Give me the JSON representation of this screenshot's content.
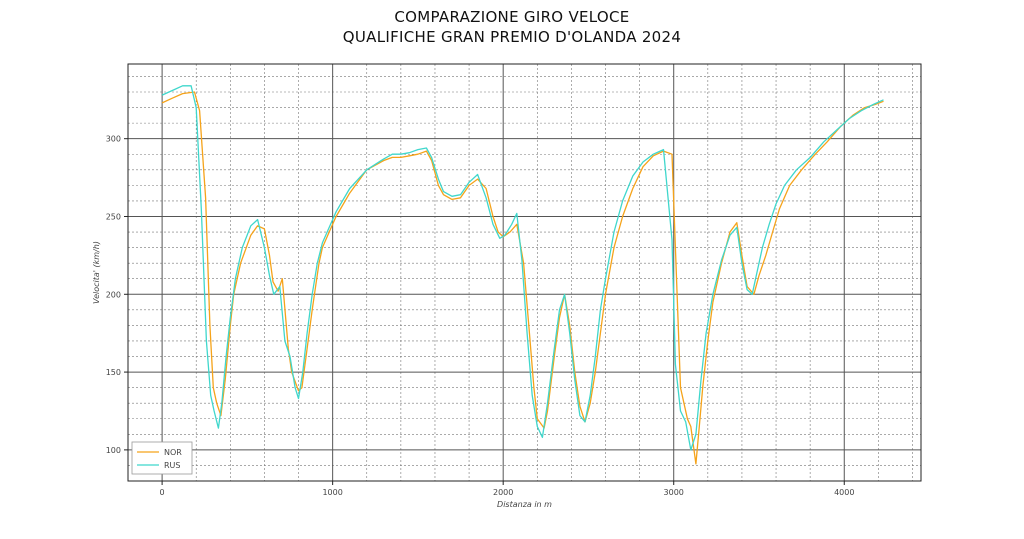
{
  "chart_data": {
    "type": "line",
    "title_line1": "COMPARAZIONE GIRO VELOCE",
    "title_line2": "QUALIFICHE GRAN PREMIO D'OLANDA 2024",
    "xlabel": "Distanza in m",
    "ylabel": "Velocita' (km/h)",
    "xlim": [
      -200,
      4450
    ],
    "ylim": [
      80,
      348
    ],
    "xticks": [
      0,
      1000,
      2000,
      3000,
      4000
    ],
    "yticks": [
      100,
      150,
      200,
      250,
      300
    ],
    "grid": true,
    "legend_position": "bottom-left",
    "series": [
      {
        "name": "NOR",
        "color": "#f5a31a",
        "x": [
          0,
          60,
          120,
          190,
          220,
          255,
          280,
          300,
          320,
          345,
          370,
          400,
          420,
          460,
          520,
          560,
          600,
          630,
          650,
          680,
          705,
          740,
          760,
          800,
          820,
          850,
          880,
          920,
          940,
          980,
          1020,
          1100,
          1200,
          1300,
          1350,
          1400,
          1450,
          1500,
          1550,
          1580,
          1620,
          1650,
          1700,
          1750,
          1800,
          1850,
          1900,
          1940,
          1970,
          2000,
          2040,
          2080,
          2120,
          2150,
          2180,
          2200,
          2240,
          2260,
          2300,
          2330,
          2360,
          2390,
          2420,
          2450,
          2480,
          2510,
          2540,
          2570,
          2600,
          2650,
          2700,
          2760,
          2820,
          2880,
          2940,
          2990,
          3010,
          3040,
          3080,
          3100,
          3130,
          3150,
          3170,
          3200,
          3230,
          3280,
          3330,
          3370,
          3400,
          3430,
          3470,
          3500,
          3540,
          3580,
          3620,
          3680,
          3750,
          3830,
          3900,
          3980,
          4050,
          4120,
          4180,
          4230
        ],
        "y": [
          323,
          326,
          329,
          330,
          318,
          262,
          180,
          140,
          130,
          122,
          145,
          180,
          200,
          220,
          238,
          244,
          242,
          225,
          208,
          202,
          210,
          165,
          150,
          138,
          140,
          165,
          190,
          220,
          230,
          240,
          250,
          265,
          280,
          286,
          288,
          288,
          289,
          290,
          292,
          286,
          270,
          264,
          261,
          262,
          270,
          274,
          268,
          250,
          240,
          237,
          240,
          245,
          220,
          180,
          140,
          120,
          114,
          125,
          160,
          185,
          200,
          180,
          150,
          128,
          118,
          130,
          150,
          175,
          200,
          230,
          250,
          268,
          282,
          289,
          292,
          290,
          230,
          140,
          120,
          115,
          91,
          115,
          140,
          170,
          195,
          220,
          240,
          246,
          225,
          205,
          200,
          212,
          225,
          240,
          255,
          270,
          280,
          290,
          298,
          308,
          315,
          320,
          322,
          324
        ]
      },
      {
        "name": "RUS",
        "color": "#3fd7cc",
        "x": [
          0,
          60,
          120,
          170,
          200,
          230,
          260,
          285,
          305,
          330,
          350,
          375,
          400,
          430,
          470,
          520,
          560,
          600,
          630,
          655,
          690,
          720,
          750,
          780,
          800,
          825,
          850,
          880,
          910,
          940,
          980,
          1020,
          1100,
          1200,
          1300,
          1350,
          1400,
          1450,
          1500,
          1550,
          1580,
          1620,
          1650,
          1700,
          1750,
          1800,
          1850,
          1900,
          1940,
          1980,
          2010,
          2050,
          2080,
          2110,
          2140,
          2170,
          2200,
          2230,
          2260,
          2300,
          2330,
          2360,
          2390,
          2420,
          2450,
          2480,
          2510,
          2540,
          2570,
          2600,
          2650,
          2700,
          2760,
          2820,
          2880,
          2940,
          2990,
          3010,
          3040,
          3070,
          3100,
          3130,
          3160,
          3190,
          3230,
          3280,
          3330,
          3370,
          3400,
          3430,
          3460,
          3490,
          3520,
          3560,
          3600,
          3650,
          3720,
          3800,
          3880,
          3960,
          4030,
          4100,
          4170,
          4230
        ],
        "y": [
          328,
          331,
          334,
          334,
          320,
          255,
          170,
          135,
          125,
          114,
          130,
          160,
          185,
          210,
          230,
          244,
          248,
          230,
          212,
          200,
          205,
          170,
          160,
          140,
          133,
          150,
          175,
          200,
          220,
          233,
          243,
          253,
          268,
          280,
          287,
          290,
          290,
          291,
          293,
          294,
          288,
          274,
          266,
          263,
          264,
          272,
          277,
          262,
          245,
          236,
          238,
          245,
          252,
          222,
          175,
          135,
          115,
          108,
          130,
          165,
          190,
          200,
          175,
          145,
          122,
          118,
          135,
          160,
          190,
          210,
          240,
          260,
          276,
          285,
          290,
          293,
          235,
          155,
          125,
          118,
          100,
          110,
          145,
          175,
          200,
          222,
          238,
          243,
          220,
          203,
          200,
          215,
          230,
          245,
          258,
          270,
          280,
          288,
          298,
          306,
          313,
          318,
          322,
          325
        ]
      }
    ]
  }
}
